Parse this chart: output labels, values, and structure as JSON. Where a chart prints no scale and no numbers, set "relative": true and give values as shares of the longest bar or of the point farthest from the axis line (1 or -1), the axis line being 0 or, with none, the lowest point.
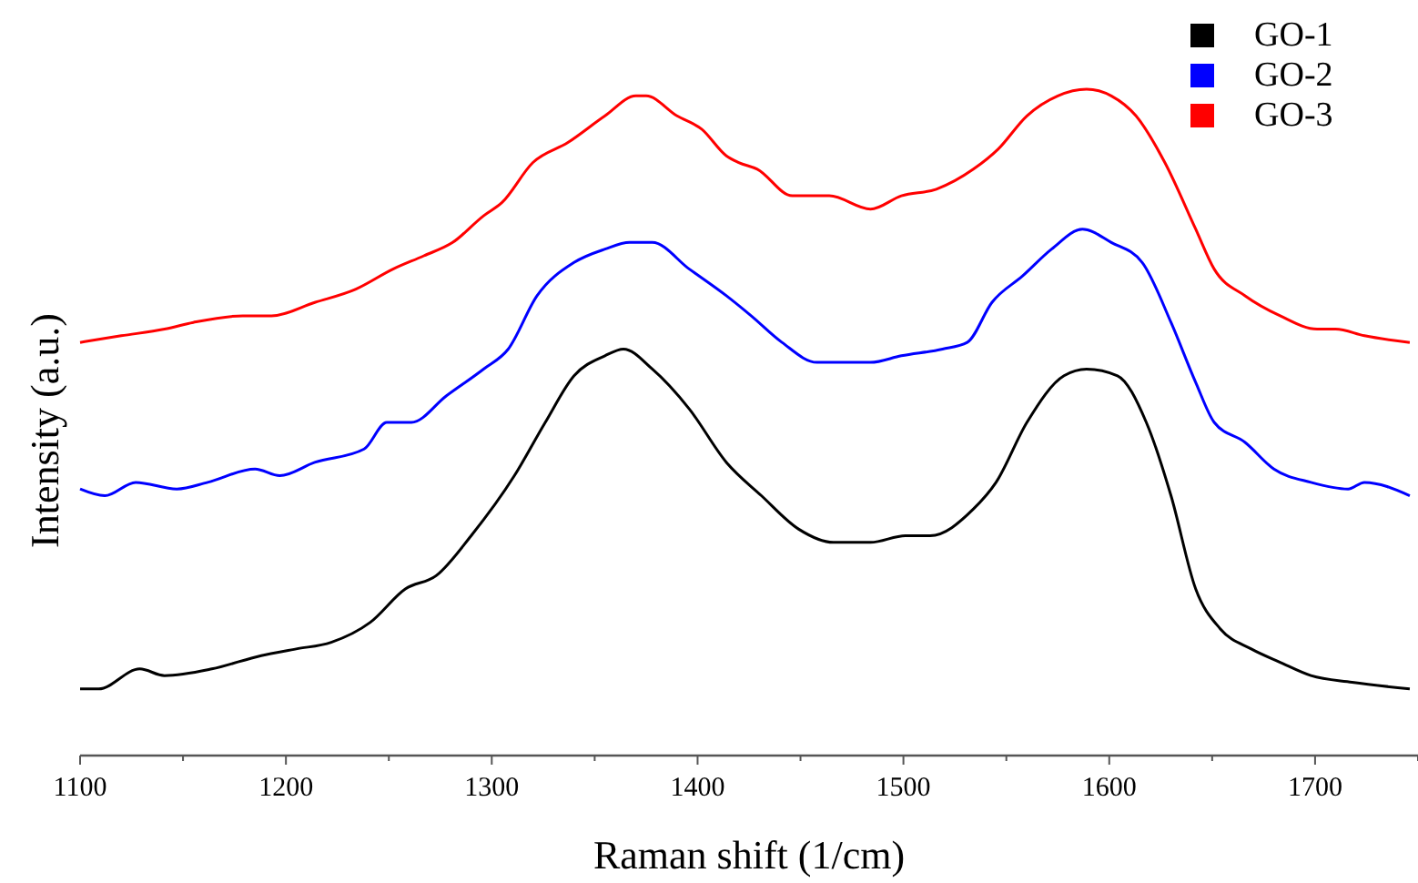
{
  "chart_data": {
    "type": "line",
    "relative": true,
    "xlabel": "Raman shift (1/cm)",
    "ylabel": "Intensity (a.u.)",
    "xlim": [
      1100,
      1750
    ],
    "xticks": [
      1100,
      {
        "value": 1150,
        "label": null
      },
      1200,
      {
        "value": 1250,
        "label": null
      },
      1300,
      {
        "value": 1350,
        "label": null
      },
      1400,
      {
        "value": 1450,
        "label": null
      },
      1500,
      {
        "value": 1550,
        "label": null
      },
      1600,
      {
        "value": 1650,
        "label": null
      },
      1700,
      {
        "value": 1750,
        "label": null
      }
    ],
    "grid": false,
    "legend": "top right",
    "marker": "none",
    "line_style": "solid",
    "series": [
      {
        "name": "GO-1",
        "color": "#000000",
        "x": [
          1100,
          1109,
          1129,
          1141,
          1164,
          1188,
          1205,
          1222,
          1241,
          1258,
          1273,
          1290,
          1311,
          1326,
          1340,
          1355,
          1364,
          1378,
          1396,
          1414,
          1431,
          1449,
          1466,
          1484,
          1501,
          1513,
          1534,
          1545,
          1560,
          1578,
          1589,
          1604,
          1618,
          1630,
          1642,
          1654,
          1669,
          1683,
          1698,
          1718,
          1746
        ],
        "values": [
          0.1,
          0.1,
          0.13,
          0.12,
          0.13,
          0.15,
          0.16,
          0.17,
          0.2,
          0.25,
          0.27,
          0.33,
          0.42,
          0.5,
          0.57,
          0.6,
          0.61,
          0.58,
          0.52,
          0.44,
          0.39,
          0.34,
          0.32,
          0.32,
          0.33,
          0.33,
          0.37,
          0.41,
          0.5,
          0.57,
          0.58,
          0.57,
          0.5,
          0.39,
          0.25,
          0.19,
          0.16,
          0.14,
          0.12,
          0.11,
          0.1
        ]
      },
      {
        "name": "GO-2",
        "color": "#0000ff",
        "x": [
          1100,
          1112,
          1127,
          1147,
          1162,
          1185,
          1197,
          1214,
          1238,
          1249,
          1261,
          1278,
          1296,
          1308,
          1322,
          1340,
          1355,
          1367,
          1378,
          1396,
          1414,
          1426,
          1441,
          1458,
          1470,
          1484,
          1499,
          1519,
          1531,
          1543,
          1558,
          1572,
          1587,
          1601,
          1616,
          1630,
          1642,
          1651,
          1666,
          1680,
          1698,
          1716,
          1724,
          1746
        ],
        "values": [
          0.4,
          0.39,
          0.41,
          0.4,
          0.41,
          0.43,
          0.42,
          0.44,
          0.46,
          0.5,
          0.5,
          0.54,
          0.58,
          0.61,
          0.69,
          0.74,
          0.76,
          0.77,
          0.77,
          0.73,
          0.69,
          0.66,
          0.62,
          0.59,
          0.59,
          0.59,
          0.6,
          0.61,
          0.62,
          0.68,
          0.72,
          0.76,
          0.79,
          0.77,
          0.74,
          0.65,
          0.56,
          0.5,
          0.47,
          0.43,
          0.41,
          0.4,
          0.41,
          0.39
        ]
      },
      {
        "name": "GO-3",
        "color": "#ff0000",
        "x": [
          1100,
          1120,
          1141,
          1155,
          1179,
          1193,
          1214,
          1234,
          1252,
          1267,
          1281,
          1296,
          1305,
          1320,
          1337,
          1355,
          1370,
          1375,
          1390,
          1402,
          1414,
          1420,
          1429,
          1446,
          1464,
          1484,
          1499,
          1516,
          1534,
          1546,
          1560,
          1575,
          1589,
          1601,
          1613,
          1627,
          1642,
          1651,
          1666,
          1683,
          1701,
          1710,
          1724,
          1746
        ],
        "values": [
          0.62,
          0.63,
          0.64,
          0.65,
          0.66,
          0.66,
          0.68,
          0.7,
          0.73,
          0.75,
          0.77,
          0.81,
          0.83,
          0.89,
          0.92,
          0.96,
          0.99,
          0.99,
          0.96,
          0.94,
          0.9,
          0.89,
          0.88,
          0.84,
          0.84,
          0.82,
          0.84,
          0.85,
          0.88,
          0.91,
          0.96,
          0.99,
          1,
          0.99,
          0.96,
          0.89,
          0.79,
          0.73,
          0.69,
          0.66,
          0.64,
          0.64,
          0.63,
          0.62
        ]
      }
    ]
  }
}
